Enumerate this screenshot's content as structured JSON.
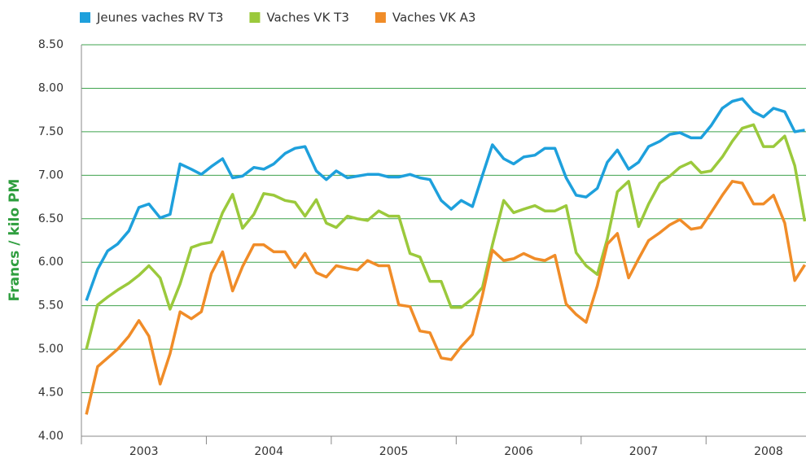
{
  "chart_data": {
    "type": "line",
    "y_label": "Francs / kilo PM",
    "x": [
      2003.04,
      2003.13,
      2003.21,
      2003.29,
      2003.38,
      2003.46,
      2003.54,
      2003.63,
      2003.71,
      2003.79,
      2003.88,
      2003.96,
      2004.04,
      2004.13,
      2004.21,
      2004.29,
      2004.38,
      2004.46,
      2004.54,
      2004.63,
      2004.71,
      2004.79,
      2004.88,
      2004.96,
      2005.04,
      2005.13,
      2005.21,
      2005.29,
      2005.38,
      2005.46,
      2005.54,
      2005.63,
      2005.71,
      2005.79,
      2005.88,
      2005.96,
      2006.04,
      2006.13,
      2006.21,
      2006.29,
      2006.38,
      2006.46,
      2006.54,
      2006.63,
      2006.71,
      2006.79,
      2006.88,
      2006.96,
      2007.04,
      2007.13,
      2007.21,
      2007.29,
      2007.38,
      2007.46,
      2007.54,
      2007.63,
      2007.71,
      2007.79,
      2007.88,
      2007.96,
      2008.04,
      2008.13,
      2008.21,
      2008.29,
      2008.38,
      2008.46,
      2008.54,
      2008.63,
      2008.71,
      2008.79
    ],
    "series": [
      {
        "name": "Jeunes vaches RV T3",
        "color": "#1ea0dc",
        "values": [
          5.56,
          5.92,
          6.13,
          6.21,
          6.36,
          6.63,
          6.67,
          6.51,
          6.55,
          7.13,
          7.07,
          7.01,
          7.1,
          7.19,
          6.97,
          6.99,
          7.09,
          7.07,
          7.13,
          7.25,
          7.31,
          7.33,
          7.05,
          6.95,
          7.05,
          6.97,
          6.99,
          7.01,
          7.01,
          6.98,
          6.98,
          7.01,
          6.97,
          6.95,
          6.71,
          6.61,
          6.71,
          6.64,
          7.0,
          7.35,
          7.19,
          7.13,
          7.21,
          7.23,
          7.31,
          7.31,
          6.97,
          6.77,
          6.75,
          6.85,
          7.15,
          7.29,
          7.07,
          7.15,
          7.33,
          7.39,
          7.47,
          7.49,
          7.43,
          7.43,
          7.57,
          7.77,
          7.85,
          7.88,
          7.73,
          7.67,
          7.77,
          7.73,
          7.5,
          7.52
        ]
      },
      {
        "name": "Vaches VK T3",
        "color": "#9bc93c",
        "values": [
          5.0,
          5.51,
          5.6,
          5.68,
          5.76,
          5.85,
          5.96,
          5.82,
          5.46,
          5.75,
          6.17,
          6.21,
          6.23,
          6.57,
          6.78,
          6.39,
          6.55,
          6.79,
          6.77,
          6.71,
          6.69,
          6.53,
          6.72,
          6.45,
          6.4,
          6.53,
          6.5,
          6.48,
          6.59,
          6.53,
          6.53,
          6.1,
          6.06,
          5.78,
          5.78,
          5.48,
          5.48,
          5.58,
          5.71,
          6.2,
          6.71,
          6.57,
          6.61,
          6.65,
          6.59,
          6.59,
          6.65,
          6.11,
          5.96,
          5.86,
          6.27,
          6.81,
          6.93,
          6.41,
          6.67,
          6.91,
          6.99,
          7.09,
          7.15,
          7.03,
          7.05,
          7.21,
          7.39,
          7.54,
          7.58,
          7.33,
          7.33,
          7.45,
          7.11,
          6.47
        ]
      },
      {
        "name": "Vaches VK A3",
        "color": "#f08c28",
        "values": [
          4.25,
          4.8,
          4.9,
          5.0,
          5.15,
          5.33,
          5.15,
          4.6,
          4.95,
          5.43,
          5.35,
          5.43,
          5.87,
          6.12,
          5.67,
          5.95,
          6.2,
          6.2,
          6.12,
          6.12,
          5.94,
          6.1,
          5.88,
          5.83,
          5.96,
          5.93,
          5.91,
          6.02,
          5.96,
          5.96,
          5.51,
          5.49,
          5.21,
          5.19,
          4.9,
          4.88,
          5.03,
          5.17,
          5.62,
          6.14,
          6.02,
          6.04,
          6.1,
          6.04,
          6.02,
          6.08,
          5.52,
          5.4,
          5.31,
          5.73,
          6.21,
          6.33,
          5.82,
          6.04,
          6.25,
          6.34,
          6.43,
          6.49,
          6.38,
          6.4,
          6.57,
          6.77,
          6.93,
          6.91,
          6.67,
          6.67,
          6.77,
          6.45,
          5.79,
          5.97
        ]
      }
    ],
    "xlim": [
      2003,
      2008.8
    ],
    "xticks": [
      {
        "value": 2003.5,
        "label": "2003"
      },
      {
        "value": 2004.5,
        "label": "2004"
      },
      {
        "value": 2005.5,
        "label": "2005"
      },
      {
        "value": 2006.5,
        "label": "2006"
      },
      {
        "value": 2007.5,
        "label": "2007"
      },
      {
        "value": 2008.5,
        "label": "2008"
      }
    ],
    "x_minor_ticks": [
      2003,
      2004,
      2005,
      2006,
      2007,
      2008
    ],
    "ylim": [
      4,
      8.5
    ],
    "yticks": [
      {
        "value": 4,
        "label": "4.00"
      },
      {
        "value": 4.5,
        "label": "4.50"
      },
      {
        "value": 5,
        "label": "5.00"
      },
      {
        "value": 5.5,
        "label": "5.50"
      },
      {
        "value": 6,
        "label": "6.00"
      },
      {
        "value": 6.5,
        "label": "6.50"
      },
      {
        "value": 7,
        "label": "7.00"
      },
      {
        "value": 7.5,
        "label": "7.50"
      },
      {
        "value": 8,
        "label": "8.00"
      },
      {
        "value": 8.5,
        "label": "8.50"
      }
    ],
    "grid": true,
    "grid_color": "#3fa34d",
    "legend": "top"
  }
}
